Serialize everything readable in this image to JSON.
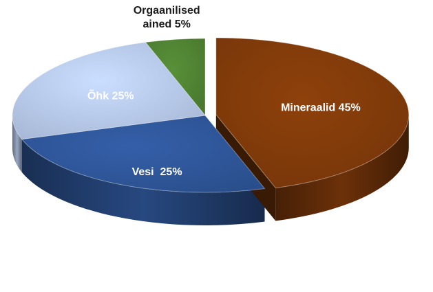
{
  "chart_data": {
    "type": "pie",
    "three_d": true,
    "start": "12 o'clock",
    "direction": "clockwise",
    "exploded_slice": "Mineraalid",
    "legend": "none",
    "slices": [
      {
        "name": "Mineraalid",
        "label": "Mineraalid 45%",
        "value": 45,
        "color": "#7f3a0a"
      },
      {
        "name": "Vesi",
        "label": "Vesi  25%",
        "value": 25,
        "color": "#2e5597"
      },
      {
        "name": "Õhk",
        "label": "Õhk 25%",
        "value": 25,
        "color": "#b4c6e6"
      },
      {
        "name": "Orgaanilised ained",
        "label_lines": [
          "Orgaanilised",
          "ained 5%"
        ],
        "value": 5,
        "color": "#4f8132"
      }
    ]
  }
}
